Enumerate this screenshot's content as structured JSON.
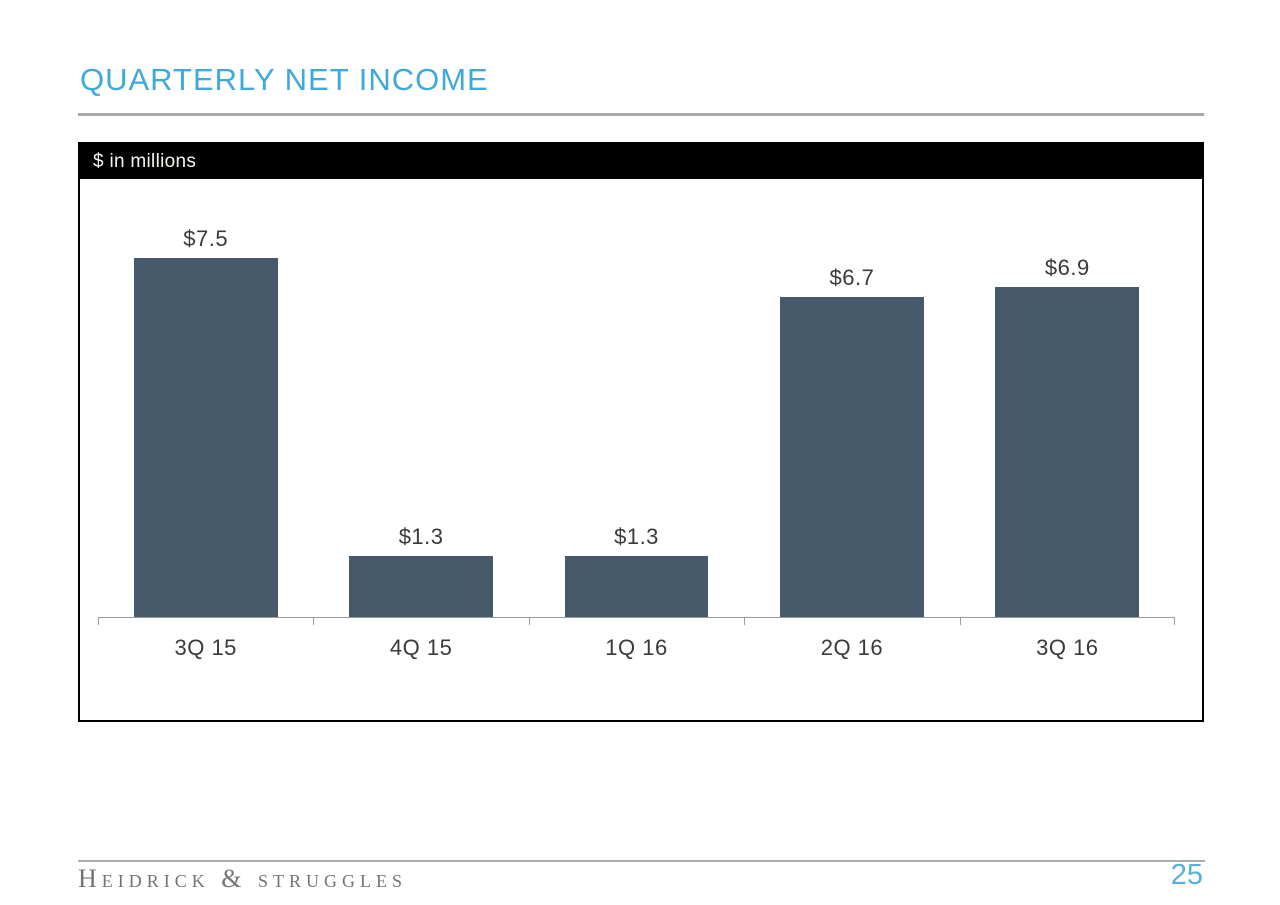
{
  "slide": {
    "title": "QUARTERLY NET INCOME"
  },
  "chart": {
    "units_label": "$ in millions"
  },
  "chart_data": {
    "type": "bar",
    "title": "Quarterly Net Income",
    "subtitle": "$ in millions",
    "categories": [
      "3Q 15",
      "4Q 15",
      "1Q 16",
      "2Q 16",
      "3Q 16"
    ],
    "values": [
      7.5,
      1.3,
      1.3,
      6.7,
      6.9
    ],
    "labels": [
      "$7.5",
      "$1.3",
      "$1.3",
      "$6.7",
      "$6.9"
    ],
    "xlabel": "",
    "ylabel": "",
    "ylim": [
      0,
      9.15
    ],
    "grid": false,
    "legend": false,
    "bar_color": "#475a6c",
    "axis_color": "#9b9b9b"
  },
  "footer": {
    "brand": "Heidrick & Struggles",
    "page_number": "25"
  },
  "colors": {
    "accent_blue": "#3da9dc",
    "bar": "#475a6c",
    "header_band": "#000000",
    "rule_gray": "#a9a9a9",
    "brand_gray": "#717476"
  }
}
